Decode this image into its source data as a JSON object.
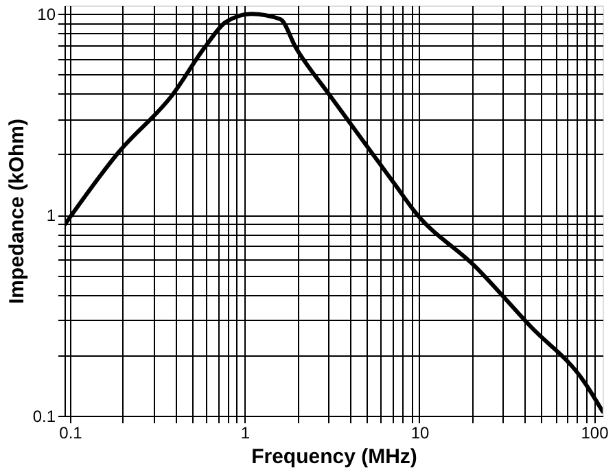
{
  "chart_data": {
    "type": "line",
    "xlabel": "Frequency (MHz)",
    "ylabel": "Impedance (kOhm)",
    "log": "xy",
    "grid": true,
    "line_style": "solid",
    "marker": "none",
    "xlim": [
      0.093,
      112
    ],
    "ylim": [
      0.1,
      11
    ],
    "xticks": [
      {
        "value": 0.1,
        "label": "0.1"
      },
      {
        "value": 0.2,
        "label": null
      },
      {
        "value": 0.3,
        "label": null
      },
      {
        "value": 0.4,
        "label": null
      },
      {
        "value": 0.5,
        "label": null
      },
      {
        "value": 0.6,
        "label": null
      },
      {
        "value": 0.7,
        "label": null
      },
      {
        "value": 0.8,
        "label": null
      },
      {
        "value": 0.9,
        "label": null
      },
      {
        "value": 1,
        "label": "1"
      },
      {
        "value": 2,
        "label": null
      },
      {
        "value": 3,
        "label": null
      },
      {
        "value": 4,
        "label": null
      },
      {
        "value": 5,
        "label": null
      },
      {
        "value": 6,
        "label": null
      },
      {
        "value": 7,
        "label": null
      },
      {
        "value": 8,
        "label": null
      },
      {
        "value": 9,
        "label": null
      },
      {
        "value": 10,
        "label": "10"
      },
      {
        "value": 20,
        "label": null
      },
      {
        "value": 30,
        "label": null
      },
      {
        "value": 40,
        "label": null
      },
      {
        "value": 50,
        "label": null
      },
      {
        "value": 60,
        "label": null
      },
      {
        "value": 70,
        "label": null
      },
      {
        "value": 80,
        "label": null
      },
      {
        "value": 90,
        "label": null
      },
      {
        "value": 100,
        "label": "100"
      }
    ],
    "yticks": [
      {
        "value": 0.1,
        "label": "0.1"
      },
      {
        "value": 0.2,
        "label": null
      },
      {
        "value": 0.3,
        "label": null
      },
      {
        "value": 0.4,
        "label": null
      },
      {
        "value": 0.5,
        "label": null
      },
      {
        "value": 0.6,
        "label": null
      },
      {
        "value": 0.7,
        "label": null
      },
      {
        "value": 0.8,
        "label": null
      },
      {
        "value": 0.9,
        "label": null
      },
      {
        "value": 1,
        "label": "1"
      },
      {
        "value": 2,
        "label": null
      },
      {
        "value": 3,
        "label": null
      },
      {
        "value": 4,
        "label": null
      },
      {
        "value": 5,
        "label": null
      },
      {
        "value": 6,
        "label": null
      },
      {
        "value": 7,
        "label": null
      },
      {
        "value": 8,
        "label": null
      },
      {
        "value": 9,
        "label": null
      },
      {
        "value": 10,
        "label": "10"
      }
    ],
    "series": [
      {
        "color": "#000000",
        "x": [
          0.093,
          0.19,
          0.39,
          0.59,
          0.78,
          1.09,
          1.6,
          1.96,
          3.05,
          5.2,
          7.4,
          9.3,
          21,
          43,
          88,
          112
        ],
        "values": [
          0.89,
          2.05,
          4.0,
          6.8,
          9.1,
          10,
          9.4,
          6.8,
          3.96,
          2.1,
          1.38,
          1.05,
          0.55,
          0.28,
          0.147,
          0.105
        ]
      }
    ]
  }
}
